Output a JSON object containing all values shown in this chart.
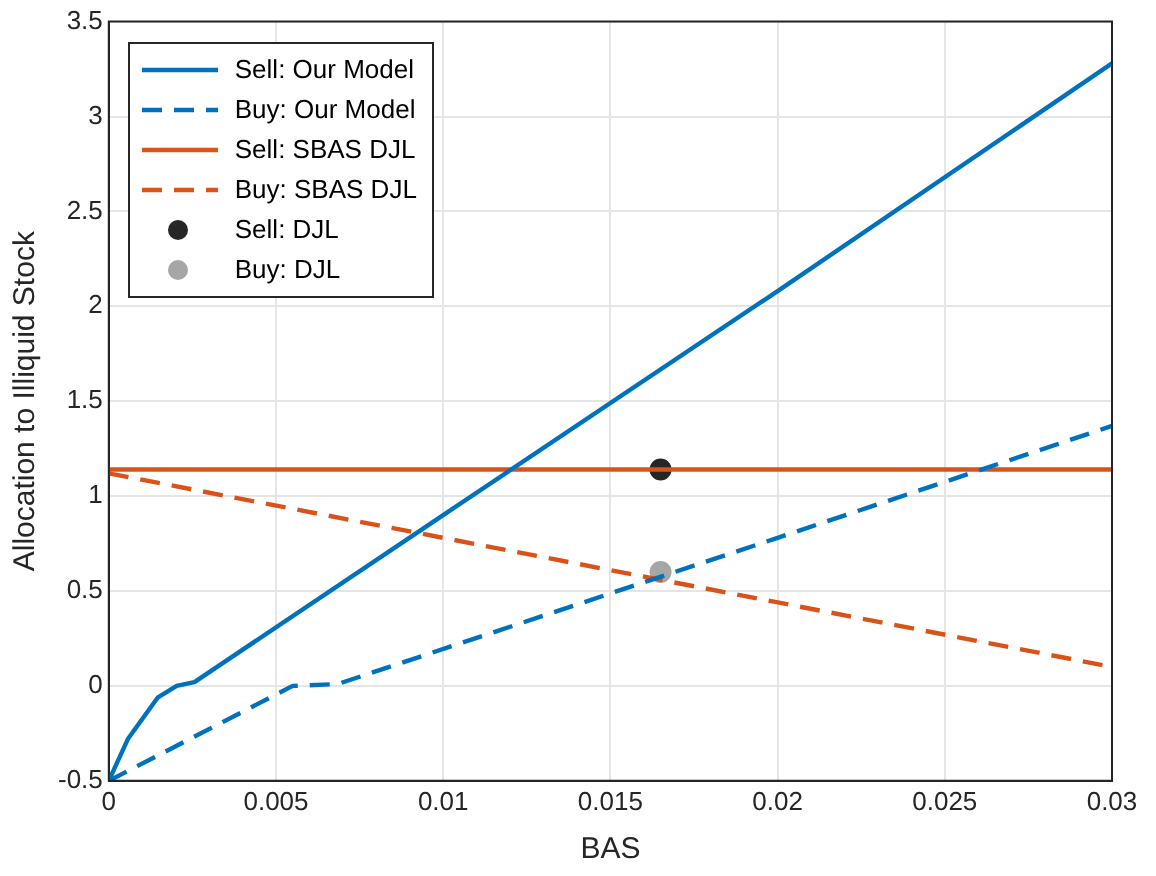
{
  "chart_data": {
    "type": "line",
    "xlabel": "BAS",
    "ylabel": "Allocation to Illiquid Stock",
    "xlim": [
      0,
      0.03
    ],
    "xticks": [
      0,
      0.005,
      0.01,
      0.015,
      0.02,
      0.025,
      0.03
    ],
    "ylim": [
      -0.5,
      3.5
    ],
    "yticks": [
      -0.5,
      0,
      0.5,
      1,
      1.5,
      2,
      2.5,
      3,
      3.5
    ],
    "grid": true,
    "legend": "top left",
    "series": [
      {
        "name": "Sell: Our Model",
        "color": "#0072bd",
        "line_style": "solid",
        "marker": "none",
        "x": [
          0,
          0.00057,
          0.00147,
          0.00203,
          0.00256,
          0.01,
          0.02,
          0.03
        ],
        "values": [
          -0.5,
          -0.28,
          -0.06,
          0,
          0.02,
          0.9,
          2.08,
          3.28
        ]
      },
      {
        "name": "Buy: Our Model",
        "color": "#0072bd",
        "line_style": "dashed",
        "marker": "none",
        "x": [
          0,
          0.0055,
          0.00685,
          0.02,
          0.03
        ],
        "values": [
          -0.5,
          0,
          0.01,
          0.78,
          1.37
        ]
      },
      {
        "name": "Sell: SBAS DJL",
        "color": "#d95319",
        "line_style": "solid",
        "marker": "none",
        "x": [
          0,
          0.03
        ],
        "values": [
          1.14,
          1.14
        ]
      },
      {
        "name": "Buy: SBAS DJL",
        "color": "#d95319",
        "line_style": "dashed",
        "marker": "none",
        "x": [
          0,
          0.03
        ],
        "values": [
          1.12,
          0.1
        ]
      },
      {
        "name": "Sell: DJL",
        "type": "scatter",
        "color": "#262626",
        "marker": "circle",
        "x": [
          0.0165
        ],
        "values": [
          1.14
        ]
      },
      {
        "name": "Buy: DJL",
        "type": "scatter",
        "color": "#a6a6a6",
        "marker": "circle",
        "x": [
          0.0165
        ],
        "values": [
          0.6
        ]
      }
    ]
  }
}
